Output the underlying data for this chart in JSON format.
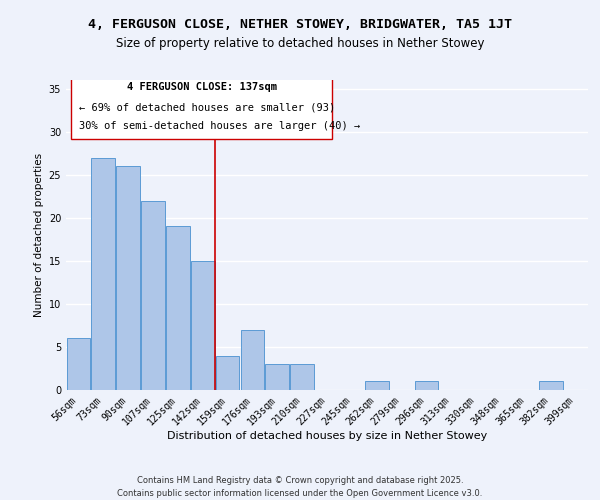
{
  "title1": "4, FERGUSON CLOSE, NETHER STOWEY, BRIDGWATER, TA5 1JT",
  "title2": "Size of property relative to detached houses in Nether Stowey",
  "xlabel": "Distribution of detached houses by size in Nether Stowey",
  "ylabel": "Number of detached properties",
  "bar_labels": [
    "56sqm",
    "73sqm",
    "90sqm",
    "107sqm",
    "125sqm",
    "142sqm",
    "159sqm",
    "176sqm",
    "193sqm",
    "210sqm",
    "227sqm",
    "245sqm",
    "262sqm",
    "279sqm",
    "296sqm",
    "313sqm",
    "330sqm",
    "348sqm",
    "365sqm",
    "382sqm",
    "399sqm"
  ],
  "bar_values": [
    6,
    27,
    26,
    22,
    19,
    15,
    4,
    7,
    3,
    3,
    0,
    0,
    1,
    0,
    1,
    0,
    0,
    0,
    0,
    1,
    0
  ],
  "bar_color": "#aec6e8",
  "bar_edge_color": "#5b9bd5",
  "vline_x": 5.5,
  "vline_color": "#cc0000",
  "annotation_lines": [
    "4 FERGUSON CLOSE: 137sqm",
    "← 69% of detached houses are smaller (93)",
    "30% of semi-detached houses are larger (40) →"
  ],
  "ylim": [
    0,
    36
  ],
  "yticks": [
    0,
    5,
    10,
    15,
    20,
    25,
    30,
    35
  ],
  "footer1": "Contains HM Land Registry data © Crown copyright and database right 2025.",
  "footer2": "Contains public sector information licensed under the Open Government Licence v3.0.",
  "background_color": "#eef2fb",
  "grid_color": "#ffffff",
  "title1_fontsize": 9.5,
  "title2_fontsize": 8.5,
  "tick_fontsize": 7,
  "xlabel_fontsize": 8,
  "ylabel_fontsize": 7.5,
  "annotation_fontsize": 7.5,
  "footer_fontsize": 6
}
